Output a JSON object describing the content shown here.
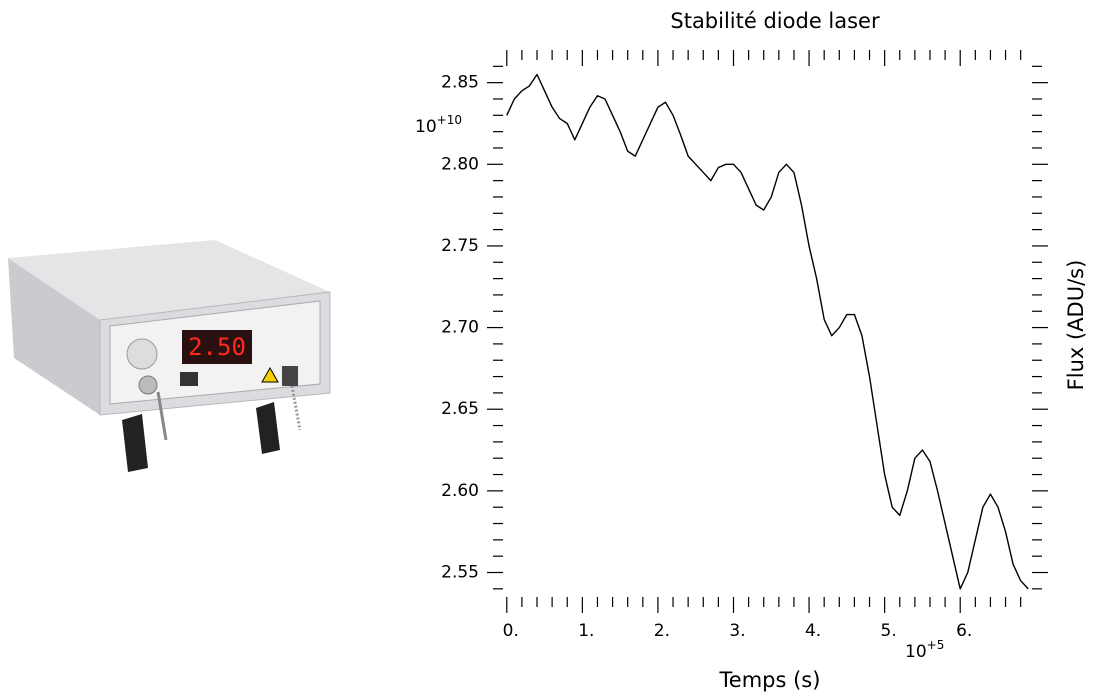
{
  "photo": {
    "display": "2.50"
  },
  "chart_data": {
    "type": "line",
    "title": "Stabilité diode laser",
    "x_label": "Temps (s)",
    "y_label": "Flux (ADU/s)",
    "x_multiplier": {
      "base": "10",
      "exponent": "+5"
    },
    "y_multiplier": {
      "base": "10",
      "exponent": "+10"
    },
    "color": "#000000",
    "grid": false,
    "xlim": [
      -0.05,
      6.95
    ],
    "ylim": [
      2.535,
      2.87
    ],
    "xticks": [
      {
        "value": 0,
        "label": "0."
      },
      {
        "value": 1,
        "label": "1."
      },
      {
        "value": 2,
        "label": "2."
      },
      {
        "value": 3,
        "label": "3."
      },
      {
        "value": 4,
        "label": "4."
      },
      {
        "value": 5,
        "label": "5."
      },
      {
        "value": 6,
        "label": "6."
      }
    ],
    "yticks": [
      2.55,
      {
        "value": 2.6,
        "label": "2.60"
      },
      2.65,
      {
        "value": 2.7,
        "label": "2.70"
      },
      2.75,
      {
        "value": 2.8,
        "label": "2.80"
      },
      2.85
    ],
    "xminorticks": [
      0.2,
      0.4,
      0.6,
      0.8,
      1.2,
      1.4,
      1.6,
      1.8,
      2.2,
      2.4,
      2.6,
      2.8,
      3.2,
      3.4,
      3.6,
      3.8,
      4.2,
      4.4,
      4.6,
      4.8,
      5.2,
      5.4,
      5.6,
      5.8,
      6.2,
      6.4,
      6.6,
      6.8
    ],
    "yminorticks": [
      2.54,
      2.56,
      2.57,
      2.58,
      2.59,
      2.61,
      2.62,
      2.63,
      2.64,
      2.66,
      2.67,
      2.68,
      2.69,
      2.71,
      2.72,
      2.73,
      2.74,
      2.76,
      2.77,
      2.78,
      2.79,
      2.81,
      2.82,
      2.83,
      2.84,
      2.86
    ],
    "x": [
      0,
      0.1,
      0.2,
      0.3,
      0.4,
      0.5,
      0.6,
      0.7,
      0.8,
      0.9,
      1.0,
      1.1,
      1.2,
      1.3,
      1.4,
      1.5,
      1.6,
      1.7,
      1.8,
      1.9,
      2.0,
      2.1,
      2.2,
      2.3,
      2.4,
      2.5,
      2.6,
      2.7,
      2.8,
      2.9,
      3.0,
      3.1,
      3.2,
      3.3,
      3.4,
      3.5,
      3.6,
      3.7,
      3.8,
      3.9,
      4.0,
      4.1,
      4.2,
      4.3,
      4.4,
      4.5,
      4.6,
      4.7,
      4.8,
      4.9,
      5.0,
      5.1,
      5.2,
      5.3,
      5.4,
      5.5,
      5.6,
      5.7,
      5.8,
      5.9,
      6.0,
      6.1,
      6.2,
      6.3,
      6.4,
      6.5,
      6.6,
      6.7,
      6.8,
      6.9
    ],
    "values": [
      2.83,
      2.84,
      2.845,
      2.848,
      2.855,
      2.845,
      2.835,
      2.828,
      2.825,
      2.815,
      2.825,
      2.835,
      2.842,
      2.84,
      2.83,
      2.82,
      2.808,
      2.805,
      2.815,
      2.825,
      2.835,
      2.838,
      2.83,
      2.818,
      2.805,
      2.8,
      2.795,
      2.79,
      2.798,
      2.8,
      2.8,
      2.795,
      2.785,
      2.775,
      2.772,
      2.78,
      2.795,
      2.8,
      2.795,
      2.775,
      2.75,
      2.73,
      2.705,
      2.695,
      2.7,
      2.708,
      2.708,
      2.695,
      2.67,
      2.64,
      2.61,
      2.59,
      2.585,
      2.6,
      2.62,
      2.625,
      2.618,
      2.6,
      2.58,
      2.56,
      2.54,
      2.55,
      2.57,
      2.59,
      2.598,
      2.59,
      2.575,
      2.555,
      2.545,
      2.54
    ]
  }
}
